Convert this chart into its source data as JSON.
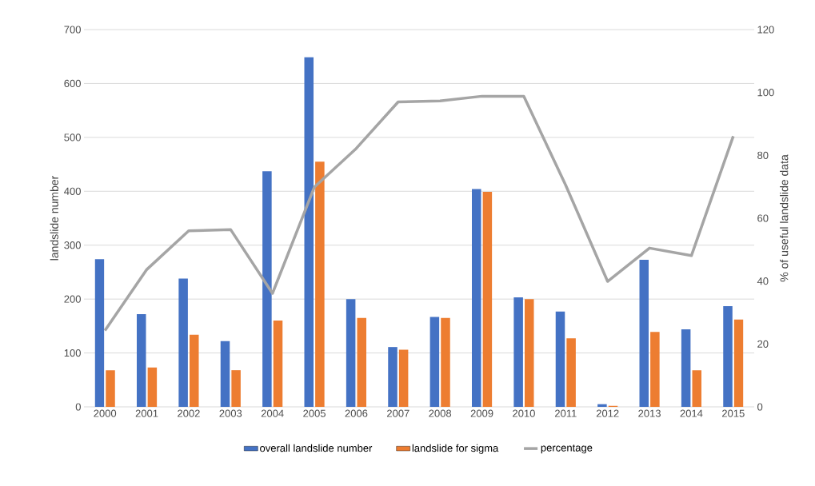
{
  "chart_data": {
    "type": "bar",
    "categories": [
      "2000",
      "2001",
      "2002",
      "2003",
      "2004",
      "2005",
      "2006",
      "2007",
      "2008",
      "2009",
      "2010",
      "2011",
      "2012",
      "2013",
      "2014",
      "2015"
    ],
    "series": [
      {
        "name": "overall landslide number",
        "color": "#4472c4",
        "values": [
          274,
          172,
          238,
          122,
          437,
          649,
          200,
          111,
          167,
          404,
          203,
          177,
          5,
          273,
          144,
          187
        ]
      },
      {
        "name": "landslide for sigma",
        "color": "#ed7d31",
        "values": [
          68,
          73,
          134,
          68,
          160,
          455,
          165,
          106,
          165,
          399,
          200,
          127,
          2,
          139,
          68,
          162
        ]
      },
      {
        "name": "percentage",
        "color": "#a5a5a5",
        "type": "line",
        "axis": "y2",
        "values": [
          24.3,
          43.7,
          56,
          56.4,
          36.1,
          69.9,
          82.2,
          97,
          97.3,
          98.8,
          98.8,
          70.5,
          39.9,
          50.5,
          48.1,
          86.1
        ]
      }
    ],
    "ylabel": "landslide number",
    "y2label": "% of useful landslide data",
    "ylim": [
      0,
      700
    ],
    "yticks": [
      0,
      100,
      200,
      300,
      400,
      500,
      600,
      700
    ],
    "y2lim": [
      0,
      120
    ],
    "y2ticks": [
      0,
      20,
      40,
      60,
      80,
      100,
      120
    ],
    "grid": "y",
    "legend": "bottom"
  }
}
